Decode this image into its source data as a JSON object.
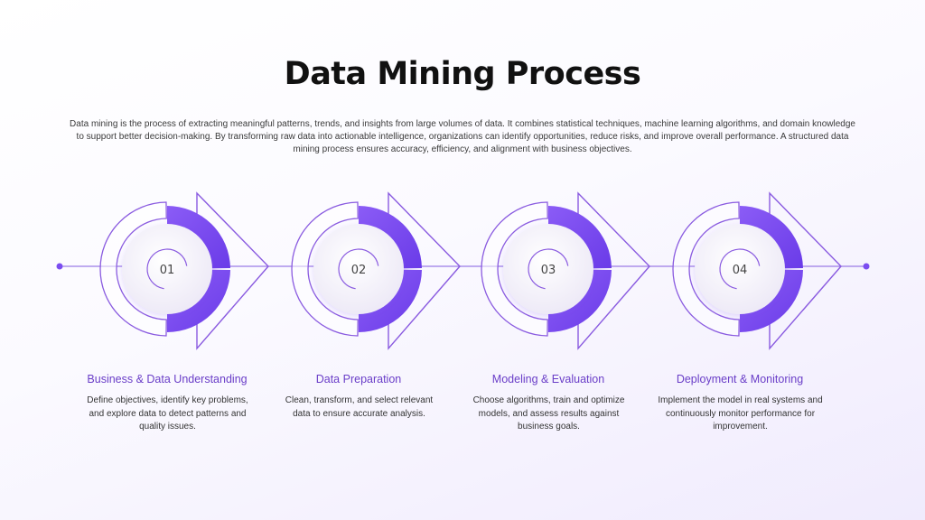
{
  "page": {
    "title": "Data Mining Process",
    "intro": "Data mining is the process of extracting meaningful patterns, trends, and insights from large volumes of data. It combines statistical techniques, machine learning algorithms, and domain knowledge to support better decision-making. By transforming raw data into actionable intelligence, organizations can identify opportunities, reduce risks, and improve overall performance. A structured data mining process ensures accuracy, efficiency, and alignment with business objectives."
  },
  "colors": {
    "accent": "#7b4df0",
    "accent_text": "#6a3ec8",
    "line": "#9a7be6",
    "outline": "#8a5be0"
  },
  "steps": [
    {
      "number": "01",
      "title": "Business & Data Understanding",
      "description": "Define objectives, identify key problems, and explore data to detect patterns and quality issues."
    },
    {
      "number": "02",
      "title": "Data Preparation",
      "description": "Clean, transform, and select relevant data to ensure accurate analysis."
    },
    {
      "number": "03",
      "title": "Modeling & Evaluation",
      "description": "Choose algorithms, train and optimize models, and assess results against business goals."
    },
    {
      "number": "04",
      "title": "Deployment & Monitoring",
      "description": "Implement the model in real systems and continuously monitor performance for improvement."
    }
  ]
}
